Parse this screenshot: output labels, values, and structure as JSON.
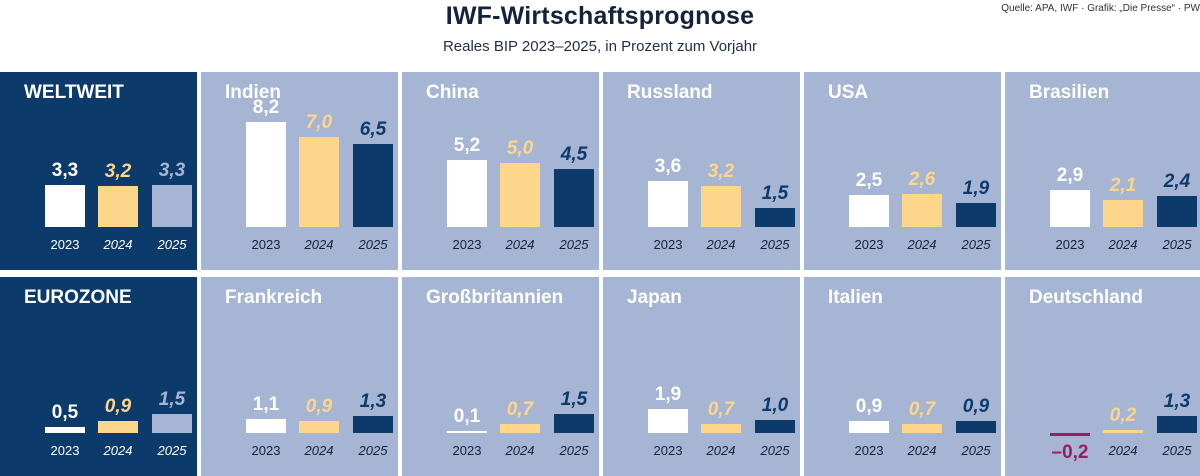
{
  "header": {
    "title": "IWF-Wirtschaftsprognose",
    "subtitle": "Reales BIP 2023–2025, in Prozent zum Vorjahr",
    "source": "Quelle: APA, IWF · Grafik: „Die Presse“ · PW"
  },
  "colors": {
    "dark_panel": "#0c3a6b",
    "light_panel": "#a6b5d3",
    "year_2023": "#ffffff",
    "year_2024": "#fdd68b",
    "year_2025_on_light": "#0c3a6b",
    "year_2025_on_dark": "#a6b5d3",
    "negative": "#9b1c5e"
  },
  "chart_data": {
    "type": "bar",
    "categories": [
      "2023",
      "2024",
      "2025"
    ],
    "ylabel": "",
    "panels": [
      {
        "name": "WELTWEIT",
        "style": "dark",
        "values": [
          3.3,
          3.2,
          3.3
        ],
        "labels": [
          "3,3",
          "3,2",
          "3,3"
        ]
      },
      {
        "name": "Indien",
        "style": "light",
        "values": [
          8.2,
          7.0,
          6.5
        ],
        "labels": [
          "8,2",
          "7,0",
          "6,5"
        ]
      },
      {
        "name": "China",
        "style": "light",
        "values": [
          5.2,
          5.0,
          4.5
        ],
        "labels": [
          "5,2",
          "5,0",
          "4,5"
        ]
      },
      {
        "name": "Russland",
        "style": "light",
        "values": [
          3.6,
          3.2,
          1.5
        ],
        "labels": [
          "3,6",
          "3,2",
          "1,5"
        ]
      },
      {
        "name": "USA",
        "style": "light",
        "values": [
          2.5,
          2.6,
          1.9
        ],
        "labels": [
          "2,5",
          "2,6",
          "1,9"
        ]
      },
      {
        "name": "Brasilien",
        "style": "light",
        "values": [
          2.9,
          2.1,
          2.4
        ],
        "labels": [
          "2,9",
          "2,1",
          "2,4"
        ]
      },
      {
        "name": "EUROZONE",
        "style": "dark",
        "values": [
          0.5,
          0.9,
          1.5
        ],
        "labels": [
          "0,5",
          "0,9",
          "1,5"
        ]
      },
      {
        "name": "Frankreich",
        "style": "light",
        "values": [
          1.1,
          0.9,
          1.3
        ],
        "labels": [
          "1,1",
          "0,9",
          "1,3"
        ]
      },
      {
        "name": "Großbritannien",
        "style": "light",
        "values": [
          0.1,
          0.7,
          1.5
        ],
        "labels": [
          "0,1",
          "0,7",
          "1,5"
        ]
      },
      {
        "name": "Japan",
        "style": "light",
        "values": [
          1.9,
          0.7,
          1.0
        ],
        "labels": [
          "1,9",
          "0,7",
          "1,0"
        ]
      },
      {
        "name": "Italien",
        "style": "light",
        "values": [
          0.9,
          0.7,
          0.9
        ],
        "labels": [
          "0,9",
          "0,7",
          "0,9"
        ]
      },
      {
        "name": "Deutschland",
        "style": "light",
        "values": [
          -0.2,
          0.2,
          1.3
        ],
        "labels": [
          "–0,2",
          "0,2",
          "1,3"
        ]
      }
    ]
  }
}
